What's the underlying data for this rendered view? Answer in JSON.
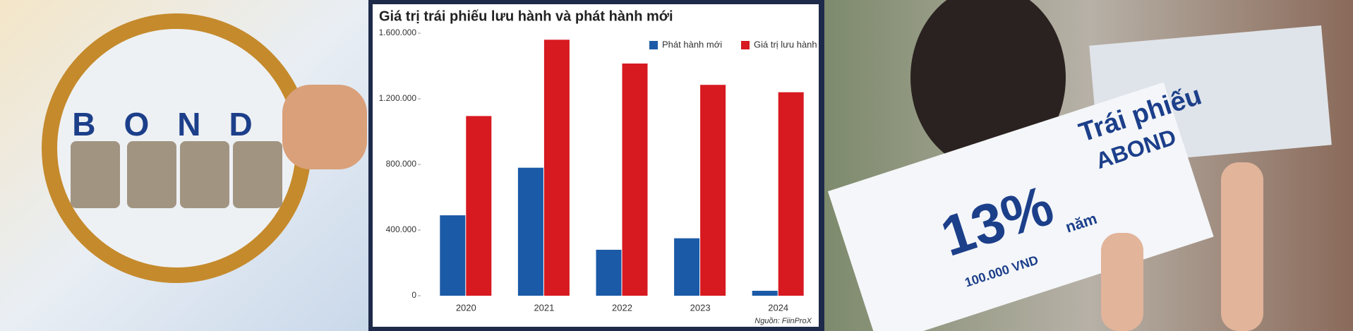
{
  "chart_data": {
    "type": "bar",
    "title": "Giá trị trái phiếu lưu hành và phát hành mới",
    "categories": [
      "2020",
      "2021",
      "2022",
      "2023",
      "2024"
    ],
    "series": [
      {
        "name": "Phát hành mới",
        "color": "#1b5aa6",
        "values": [
          490000,
          780000,
          280000,
          350000,
          30000
        ]
      },
      {
        "name": "Giá trị lưu hành",
        "color": "#d71920",
        "values": [
          1095000,
          1560000,
          1415000,
          1285000,
          1240000
        ]
      }
    ],
    "ylim": [
      0,
      1600000
    ],
    "yticks": [
      0,
      {
        "value": 400000,
        "label": "400.000"
      },
      {
        "value": 800000,
        "label": "800.000"
      },
      {
        "value": 1200000,
        "label": "1.200.000"
      },
      {
        "value": 1600000,
        "label": "1.600.000"
      }
    ],
    "grid": false,
    "legend": "top-right",
    "source": "Nguồn: FiinProX"
  },
  "photos": {
    "left": {
      "text": "BOND"
    },
    "right": {
      "texts": [
        "Trái phiếu",
        "ABOND",
        "13%",
        "năm",
        "100.000 VND"
      ]
    }
  }
}
